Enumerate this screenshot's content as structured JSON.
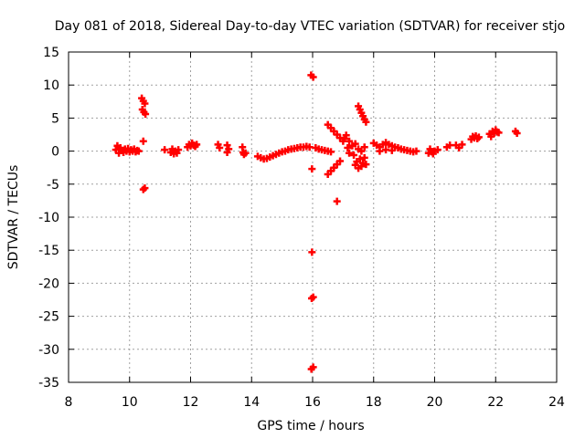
{
  "chart_data": {
    "type": "scatter",
    "title": "Day 081 of 2018, Sidereal Day-to-day VTEC variation (SDTVAR) for receiver stjo",
    "xlabel": "GPS time / hours",
    "ylabel": "SDTVAR / TECUs",
    "xlim": [
      8,
      24
    ],
    "ylim": [
      -35,
      15
    ],
    "xticks": [
      8,
      10,
      12,
      14,
      16,
      18,
      20,
      22,
      24
    ],
    "yticks": [
      15,
      10,
      5,
      0,
      -5,
      -10,
      -15,
      -20,
      -25,
      -30,
      -35
    ],
    "grid": true,
    "marker": "plus",
    "color": "#ff0000",
    "series": [
      {
        "name": "SDTVAR",
        "points": [
          [
            9.55,
            0.2
          ],
          [
            9.6,
            0.8
          ],
          [
            9.65,
            -0.3
          ],
          [
            9.7,
            0.5
          ],
          [
            9.75,
            0.1
          ],
          [
            9.8,
            -0.2
          ],
          [
            9.85,
            0.3
          ],
          [
            9.9,
            0.0
          ],
          [
            9.95,
            0.4
          ],
          [
            10.0,
            -0.1
          ],
          [
            10.05,
            0.2
          ],
          [
            10.1,
            0.0
          ],
          [
            10.15,
            0.3
          ],
          [
            10.2,
            -0.1
          ],
          [
            10.25,
            0.1
          ],
          [
            10.3,
            0.0
          ],
          [
            10.4,
            8.0
          ],
          [
            10.45,
            7.6
          ],
          [
            10.5,
            7.2
          ],
          [
            10.42,
            6.3
          ],
          [
            10.47,
            5.9
          ],
          [
            10.52,
            5.6
          ],
          [
            10.45,
            1.5
          ],
          [
            10.45,
            -5.8
          ],
          [
            10.5,
            -5.6
          ],
          [
            11.15,
            0.2
          ],
          [
            11.35,
            -0.2
          ],
          [
            11.4,
            0.3
          ],
          [
            11.45,
            -0.4
          ],
          [
            11.5,
            0.0
          ],
          [
            11.55,
            -0.3
          ],
          [
            11.6,
            0.2
          ],
          [
            11.9,
            0.6
          ],
          [
            11.95,
            1.0
          ],
          [
            12.0,
            0.8
          ],
          [
            12.05,
            1.2
          ],
          [
            12.1,
            0.9
          ],
          [
            12.15,
            0.7
          ],
          [
            12.2,
            1.0
          ],
          [
            12.9,
            1.0
          ],
          [
            12.95,
            0.5
          ],
          [
            13.2,
            0.9
          ],
          [
            13.25,
            0.3
          ],
          [
            13.2,
            -0.2
          ],
          [
            13.7,
            0.6
          ],
          [
            13.72,
            -0.2
          ],
          [
            13.75,
            -0.5
          ],
          [
            13.8,
            -0.3
          ],
          [
            14.2,
            -0.8
          ],
          [
            14.3,
            -1.0
          ],
          [
            14.4,
            -1.2
          ],
          [
            14.5,
            -1.1
          ],
          [
            14.6,
            -0.9
          ],
          [
            14.7,
            -0.7
          ],
          [
            14.8,
            -0.5
          ],
          [
            14.9,
            -0.3
          ],
          [
            15.0,
            -0.1
          ],
          [
            15.1,
            0.0
          ],
          [
            15.2,
            0.2
          ],
          [
            15.3,
            0.3
          ],
          [
            15.4,
            0.4
          ],
          [
            15.5,
            0.5
          ],
          [
            15.6,
            0.6
          ],
          [
            15.7,
            0.6
          ],
          [
            15.8,
            0.7
          ],
          [
            15.9,
            0.6
          ],
          [
            15.95,
            11.5
          ],
          [
            16.02,
            11.2
          ],
          [
            15.98,
            -2.7
          ],
          [
            15.98,
            -15.3
          ],
          [
            15.97,
            -22.3
          ],
          [
            16.02,
            -22.1
          ],
          [
            15.96,
            -33.0
          ],
          [
            16.02,
            -32.7
          ],
          [
            16.1,
            0.5
          ],
          [
            16.2,
            0.3
          ],
          [
            16.3,
            0.2
          ],
          [
            16.4,
            0.1
          ],
          [
            16.5,
            0.0
          ],
          [
            16.6,
            -0.1
          ],
          [
            16.5,
            4.0
          ],
          [
            16.6,
            3.5
          ],
          [
            16.7,
            3.0
          ],
          [
            16.8,
            2.5
          ],
          [
            16.9,
            2.0
          ],
          [
            17.0,
            1.5
          ],
          [
            16.5,
            -3.5
          ],
          [
            16.6,
            -3.0
          ],
          [
            16.7,
            -2.5
          ],
          [
            16.8,
            -2.0
          ],
          [
            16.9,
            -1.5
          ],
          [
            16.8,
            -7.6
          ],
          [
            17.05,
            1.9
          ],
          [
            17.1,
            2.4
          ],
          [
            17.2,
            1.5
          ],
          [
            17.15,
            0.5
          ],
          [
            17.2,
            -0.3
          ],
          [
            17.3,
            0.8
          ],
          [
            17.4,
            1.1
          ],
          [
            17.35,
            -0.6
          ],
          [
            17.5,
            6.8
          ],
          [
            17.55,
            6.3
          ],
          [
            17.6,
            5.8
          ],
          [
            17.65,
            5.3
          ],
          [
            17.7,
            4.8
          ],
          [
            17.75,
            4.4
          ],
          [
            17.4,
            -2.1
          ],
          [
            17.45,
            -1.6
          ],
          [
            17.5,
            -2.6
          ],
          [
            17.55,
            -1.2
          ],
          [
            17.6,
            -2.3
          ],
          [
            17.65,
            -1.8
          ],
          [
            17.7,
            -1.0
          ],
          [
            17.75,
            -2.0
          ],
          [
            17.5,
            0.3
          ],
          [
            17.6,
            0.0
          ],
          [
            17.7,
            0.6
          ],
          [
            18.0,
            1.2
          ],
          [
            18.1,
            0.9
          ],
          [
            18.2,
            0.6
          ],
          [
            18.3,
            1.0
          ],
          [
            18.4,
            1.3
          ],
          [
            18.5,
            1.0
          ],
          [
            18.6,
            0.8
          ],
          [
            18.7,
            0.6
          ],
          [
            18.8,
            0.5
          ],
          [
            18.9,
            0.3
          ],
          [
            19.0,
            0.2
          ],
          [
            19.1,
            0.1
          ],
          [
            19.2,
            0.0
          ],
          [
            19.3,
            -0.1
          ],
          [
            19.4,
            0.0
          ],
          [
            18.2,
            0.0
          ],
          [
            18.4,
            0.2
          ],
          [
            18.6,
            0.1
          ],
          [
            19.8,
            -0.3
          ],
          [
            19.9,
            -0.1
          ],
          [
            20.0,
            0.0
          ],
          [
            20.1,
            0.2
          ],
          [
            19.85,
            0.3
          ],
          [
            19.95,
            -0.4
          ],
          [
            20.4,
            0.6
          ],
          [
            20.5,
            0.9
          ],
          [
            20.7,
            0.9
          ],
          [
            20.8,
            0.5
          ],
          [
            20.9,
            1.0
          ],
          [
            21.2,
            1.8
          ],
          [
            21.25,
            2.2
          ],
          [
            21.3,
            2.0
          ],
          [
            21.35,
            2.3
          ],
          [
            21.4,
            1.9
          ],
          [
            21.45,
            2.1
          ],
          [
            21.8,
            2.6
          ],
          [
            21.85,
            2.2
          ],
          [
            21.9,
            3.0
          ],
          [
            21.95,
            2.7
          ],
          [
            22.0,
            3.2
          ],
          [
            22.05,
            2.9
          ],
          [
            22.1,
            2.8
          ],
          [
            22.65,
            3.0
          ],
          [
            22.7,
            2.7
          ]
        ]
      }
    ]
  }
}
